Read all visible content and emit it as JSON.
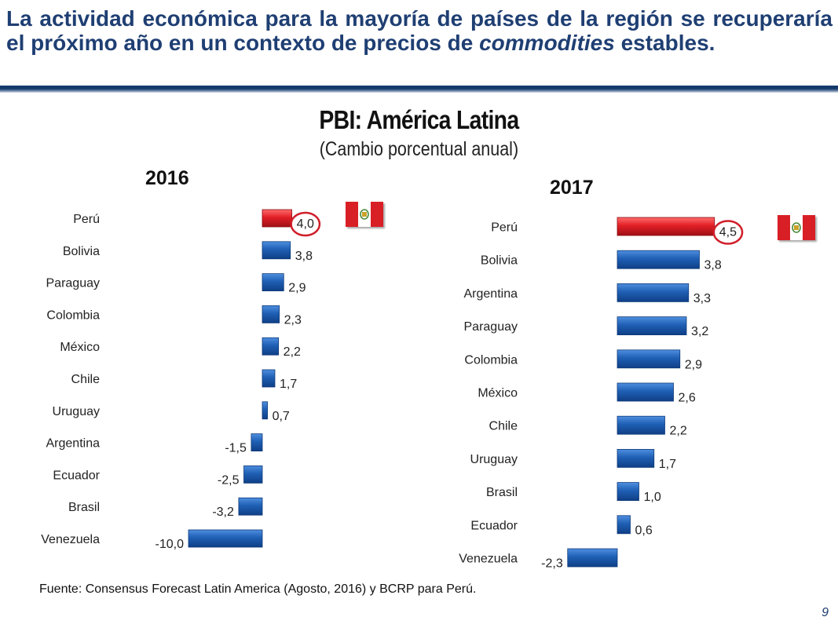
{
  "headline": {
    "part1": "La actividad económica para la mayoría de países de la región se recuperaría el próximo año en un contexto de precios de ",
    "italic": "commodities",
    "part2": " estables."
  },
  "colors": {
    "headline": "#1f3f73",
    "highlight_bar": "#e21f26",
    "bar": "#1f5fb4",
    "circle": "#d01f2a",
    "flag_red": "#d91f26"
  },
  "chart_data": [
    {
      "type": "bar",
      "orientation": "horizontal",
      "title": "PBI: América Latina",
      "subtitle": "(Cambio porcentual anual)",
      "panel": "2016",
      "categories": [
        "Perú",
        "Bolivia",
        "Paraguay",
        "Colombia",
        "México",
        "Chile",
        "Uruguay",
        "Argentina",
        "Ecuador",
        "Brasil",
        "Venezuela"
      ],
      "values": [
        4.0,
        3.8,
        2.9,
        2.3,
        2.2,
        1.7,
        0.7,
        -1.5,
        -2.5,
        -3.2,
        -10.0
      ],
      "value_labels": [
        "4,0",
        "3,8",
        "2,9",
        "2,3",
        "2,2",
        "1,7",
        "0,7",
        "-1,5",
        "-2,5",
        "-3,2",
        "-10,0"
      ],
      "highlight": "Perú"
    },
    {
      "type": "bar",
      "orientation": "horizontal",
      "panel": "2017",
      "categories": [
        "Perú",
        "Bolivia",
        "Argentina",
        "Paraguay",
        "Colombia",
        "México",
        "Chile",
        "Uruguay",
        "Brasil",
        "Ecuador",
        "Venezuela"
      ],
      "values": [
        4.5,
        3.8,
        3.3,
        3.2,
        2.9,
        2.6,
        2.2,
        1.7,
        1.0,
        0.6,
        -2.3
      ],
      "value_labels": [
        "4,5",
        "3,8",
        "3,3",
        "3,2",
        "2,9",
        "2,6",
        "2,2",
        "1,7",
        "1,0",
        "0,6",
        "-2,3"
      ],
      "highlight": "Perú"
    }
  ],
  "source": "Fuente: Consensus Forecast Latin America  (Agosto, 2016) y BCRP para Perú.",
  "page_number": "9"
}
